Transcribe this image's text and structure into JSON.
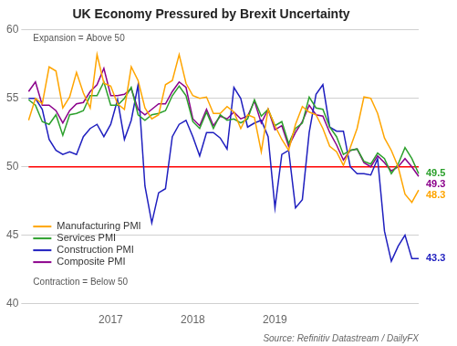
{
  "chart_data": {
    "type": "line",
    "title": "UK Economy Pressured by Brexit Uncertainty",
    "categories": [
      null,
      null,
      null,
      null,
      null,
      null,
      null,
      null,
      null,
      null,
      null,
      null,
      "2017",
      null,
      null,
      null,
      null,
      null,
      null,
      null,
      null,
      null,
      null,
      null,
      "2018",
      null,
      null,
      null,
      null,
      null,
      null,
      null,
      null,
      null,
      null,
      null,
      "2019",
      null,
      null,
      null,
      null,
      null,
      null,
      null,
      null,
      null,
      null,
      null,
      null,
      null,
      null,
      null,
      null,
      null,
      null,
      null,
      null,
      null
    ],
    "series": [
      {
        "name": "Manufacturing PMI",
        "color": "#FFA500",
        "values": [
          53.4,
          55.0,
          54.6,
          57.3,
          57.0,
          54.3,
          55.1,
          56.9,
          55.4,
          54.3,
          58.2,
          56.1,
          55.9,
          54.6,
          54.2,
          57.3,
          56.3,
          54.3,
          53.5,
          53.8,
          56.0,
          56.3,
          58.2,
          56.1,
          55.2,
          55.0,
          55.1,
          53.9,
          53.9,
          54.4,
          54.0,
          52.8,
          53.8,
          53.6,
          51.1,
          54.2,
          53.0,
          52.0,
          51.2,
          53.1,
          54.4,
          54.0,
          53.8,
          52.8,
          51.5,
          51.1,
          50.1,
          51.4,
          52.8,
          55.1,
          55.0,
          53.9,
          52.1,
          51.2,
          50.0,
          48.0,
          47.4,
          48.3
        ]
      },
      {
        "name": "Services PMI",
        "color": "#2ca02c",
        "values": [
          54.9,
          54.5,
          53.3,
          53.1,
          53.8,
          52.3,
          53.8,
          53.9,
          54.1,
          55.2,
          55.2,
          56.2,
          54.5,
          54.5,
          55.0,
          55.8,
          53.8,
          53.4,
          53.8,
          53.9,
          54.1,
          55.2,
          55.9,
          55.2,
          53.3,
          52.8,
          54.0,
          52.8,
          53.8,
          53.4,
          53.5,
          53.2,
          53.5,
          54.9,
          53.7,
          54.2,
          53.0,
          53.3,
          51.7,
          52.8,
          53.2,
          55.1,
          54.3,
          54.2,
          52.9,
          52.2,
          50.9,
          51.2,
          51.3,
          50.4,
          50.2,
          51.0,
          50.6,
          49.5,
          50.2,
          51.4,
          50.6,
          49.5
        ]
      },
      {
        "name": "Construction PMI",
        "color": "#1f1fbf",
        "values": [
          55.0,
          55.0,
          54.2,
          52.0,
          51.2,
          50.9,
          51.1,
          50.9,
          52.2,
          52.8,
          53.1,
          52.2,
          53.1,
          54.9,
          52.0,
          53.4,
          56.0,
          48.6,
          45.9,
          48.1,
          48.4,
          52.2,
          53.1,
          53.4,
          52.2,
          50.8,
          52.5,
          52.5,
          52.1,
          51.3,
          55.8,
          55.0,
          52.9,
          53.2,
          53.4,
          52.2,
          47.0,
          50.9,
          51.2,
          47.0,
          47.6,
          52.5,
          55.3,
          56.0,
          52.9,
          52.6,
          52.6,
          50.0,
          49.5,
          49.5,
          49.4,
          50.6,
          45.3,
          43.1,
          44.2,
          45.0,
          43.3,
          43.3
        ]
      },
      {
        "name": "Composite PMI",
        "color": "#8B008B",
        "values": [
          55.5,
          56.2,
          54.5,
          54.5,
          54.1,
          53.2,
          54.1,
          54.6,
          54.7,
          55.5,
          56.0,
          57.2,
          55.2,
          55.2,
          55.3,
          55.7,
          54.2,
          53.8,
          54.2,
          54.6,
          54.6,
          55.5,
          56.2,
          55.8,
          53.5,
          53.0,
          54.2,
          53.0,
          53.7,
          53.5,
          54.0,
          53.5,
          53.7,
          54.8,
          53.2,
          54.2,
          52.7,
          53.0,
          51.5,
          52.5,
          53.3,
          54.5,
          53.8,
          53.7,
          52.5,
          51.6,
          50.5,
          51.2,
          51.3,
          50.3,
          50.0,
          50.8,
          50.3,
          49.7,
          50.0,
          50.6,
          50.0,
          49.3
        ]
      }
    ],
    "ylim": [
      40,
      60
    ],
    "yticks": [
      40,
      45,
      50,
      55,
      60
    ],
    "grid": true,
    "legend": "lower left",
    "reference_line": {
      "value": 50,
      "color": "red"
    },
    "annotations": [
      "Expansion = Above 50",
      "Contraction = Below 50"
    ],
    "end_labels": [
      {
        "series": "Services PMI",
        "value": 49.5,
        "color": "#2ca02c"
      },
      {
        "series": "Composite PMI",
        "value": 49.3,
        "color": "#8B008B"
      },
      {
        "series": "Manufacturing PMI",
        "value": 48.3,
        "color": "#FFA500"
      },
      {
        "series": "Construction PMI",
        "value": 43.3,
        "color": "#1f1fbf"
      }
    ],
    "source": "Source: Refinitiv Datastream / DailyFX"
  }
}
